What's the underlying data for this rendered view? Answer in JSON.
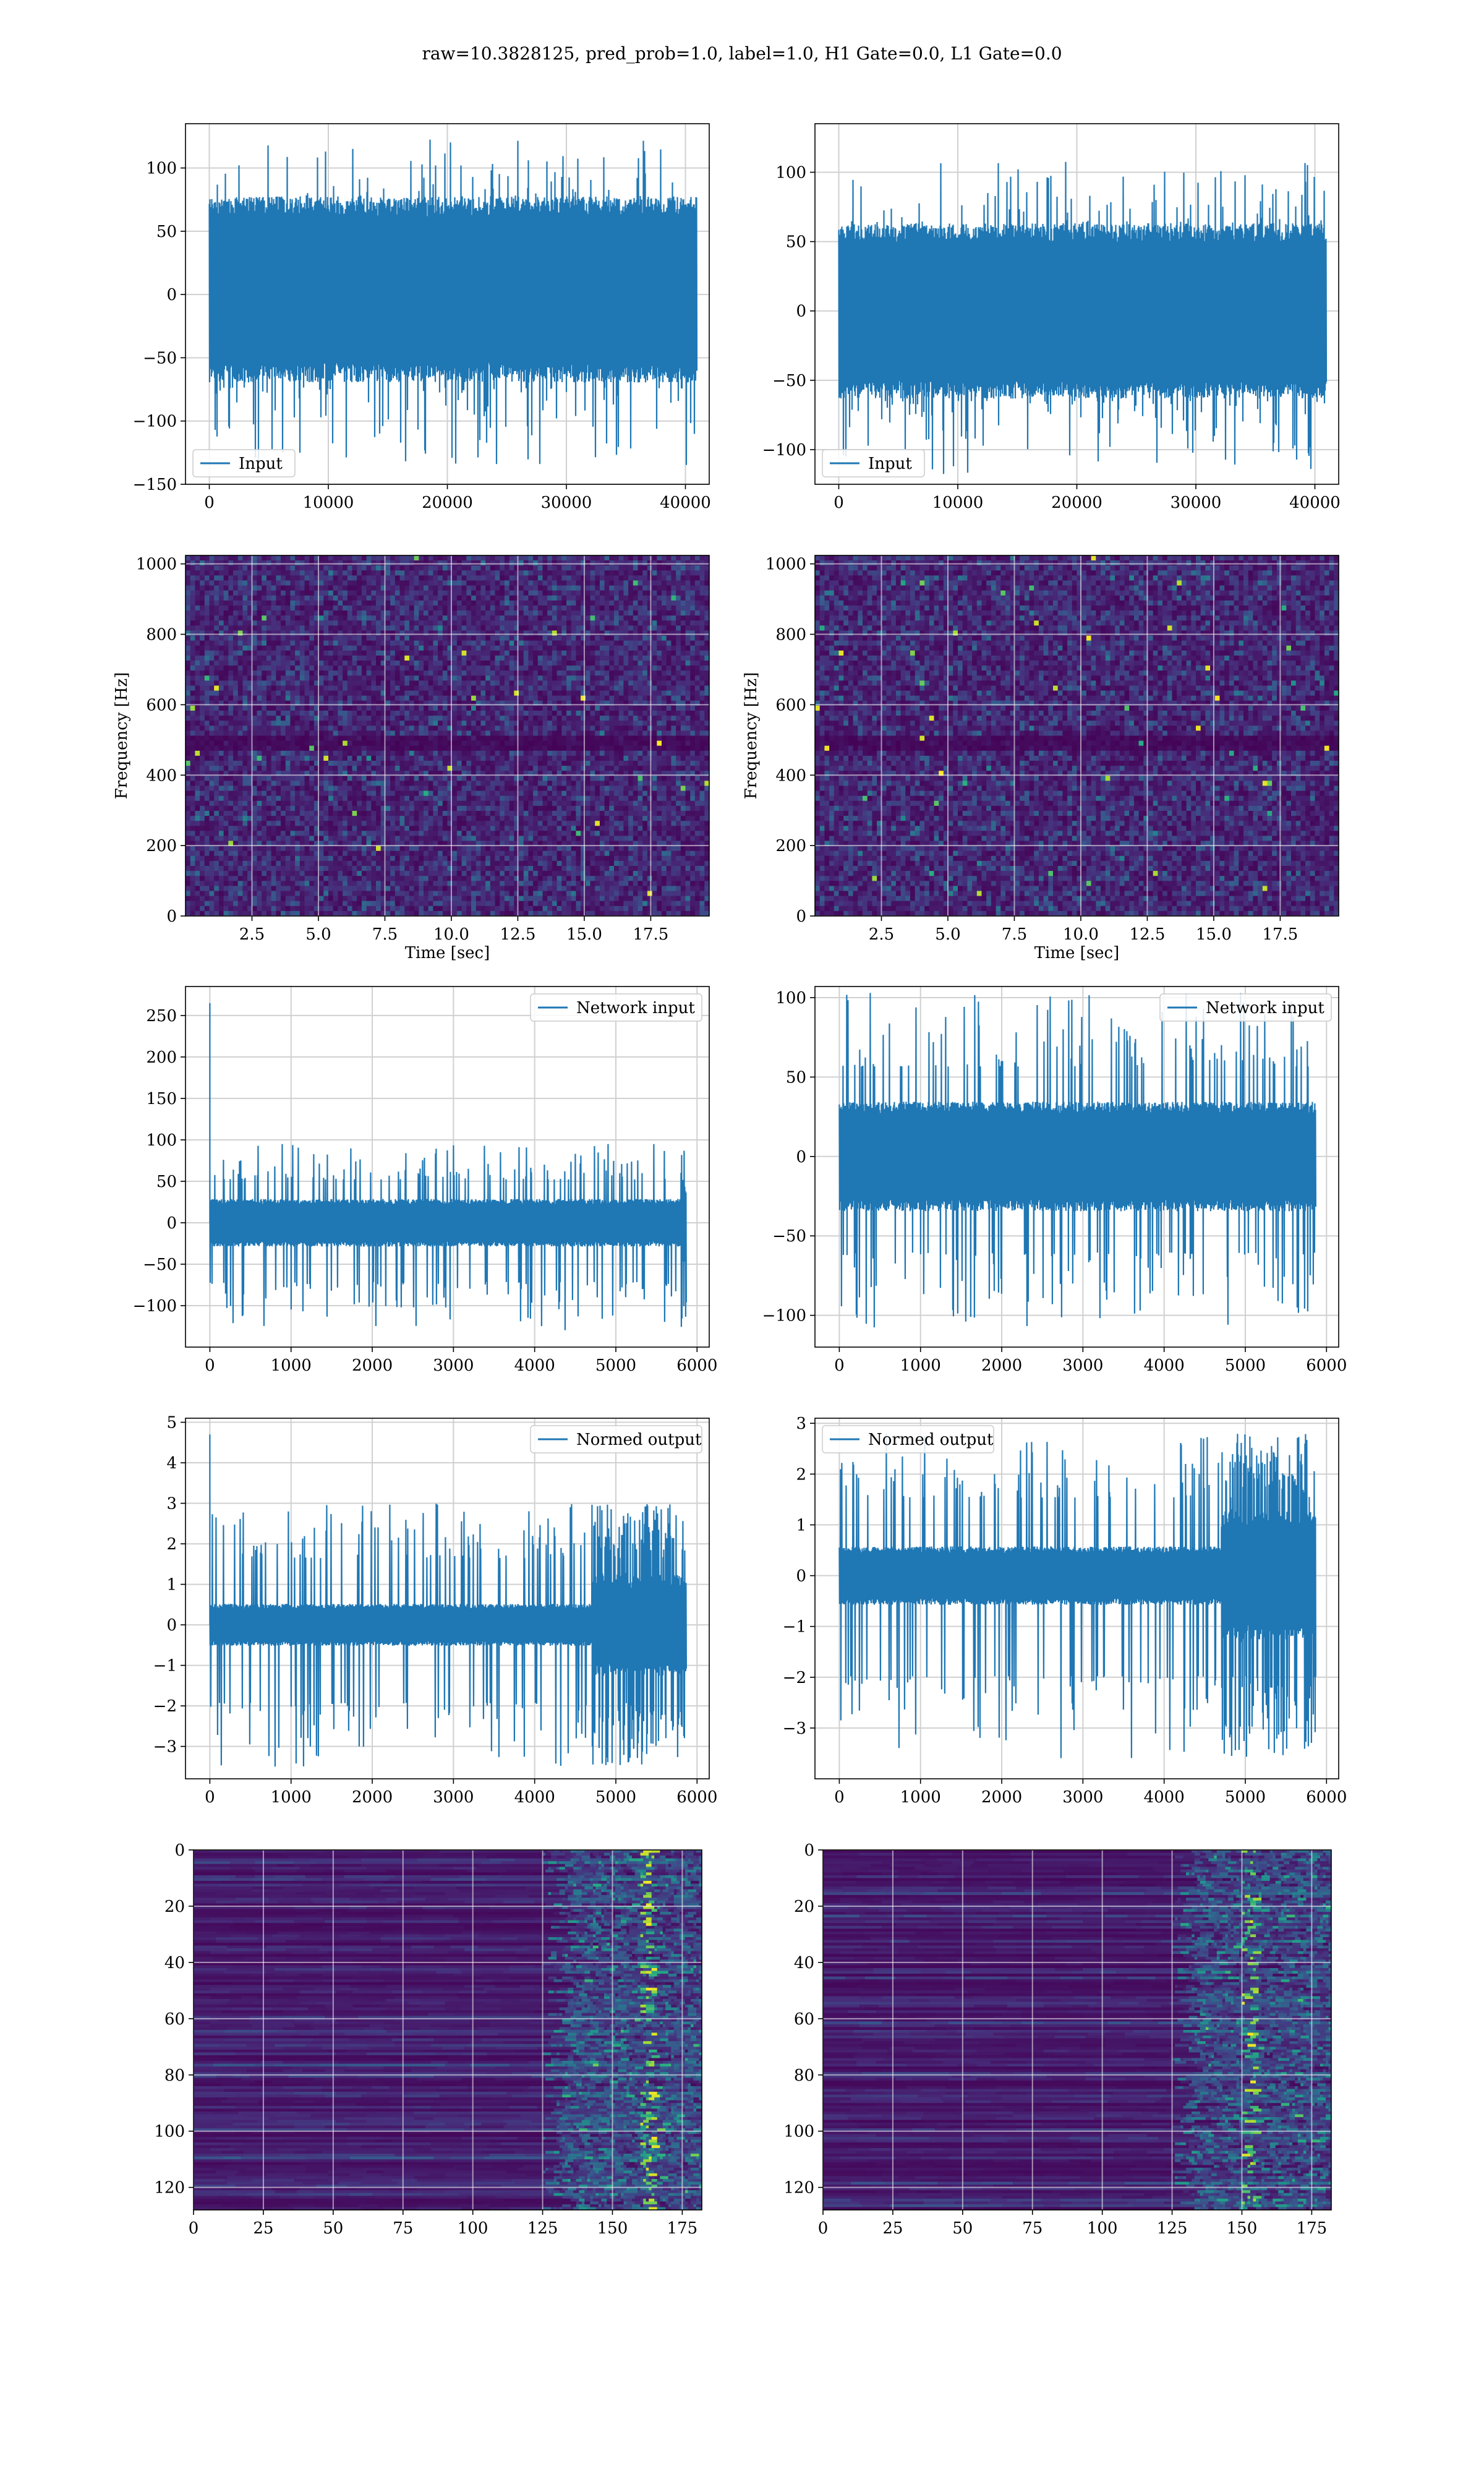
{
  "figure": {
    "suptitle": "raw=10.3828125, pred_prob=1.0, label=1.0, H1 Gate=0.0, L1 Gate=0.0"
  },
  "chart_data": [
    {
      "id": "h1-input",
      "type": "line",
      "legend": "Input",
      "legend_loc": "lower-left",
      "xlim": [
        -2000,
        42000
      ],
      "ylim": [
        -150,
        135
      ],
      "xticks": [
        0,
        10000,
        20000,
        30000,
        40000
      ],
      "xtick_labels": [
        "0",
        "10000",
        "20000",
        "30000",
        "40000"
      ],
      "yticks": [
        -150,
        -100,
        -50,
        0,
        50,
        100
      ],
      "ytick_labels": [
        "−150",
        "−100",
        "−50",
        "0",
        "50",
        "100"
      ],
      "grid": true,
      "color": "#1f77b4",
      "series": {
        "x_start": 0,
        "x_end": 40960,
        "band_lo": -60,
        "band_hi": 68,
        "spike_min": -137,
        "spike_max": 125
      }
    },
    {
      "id": "l1-input",
      "type": "line",
      "legend": "Input",
      "legend_loc": "lower-left",
      "xlim": [
        -2000,
        42000
      ],
      "ylim": [
        -125,
        135
      ],
      "xticks": [
        0,
        10000,
        20000,
        30000,
        40000
      ],
      "xtick_labels": [
        "0",
        "10000",
        "20000",
        "30000",
        "40000"
      ],
      "yticks": [
        -100,
        -50,
        0,
        50,
        100
      ],
      "ytick_labels": [
        "−100",
        "−50",
        "0",
        "50",
        "100"
      ],
      "grid": true,
      "color": "#1f77b4",
      "series": {
        "x_start": 0,
        "x_end": 40960,
        "band_lo": -55,
        "band_hi": 55,
        "spike_min": -118,
        "spike_max": 108
      }
    },
    {
      "id": "h1-spectrogram",
      "type": "heatmap",
      "colormap": "viridis",
      "xlabel": "Time [sec]",
      "ylabel": "Frequency [Hz]",
      "xlim": [
        0,
        19.7
      ],
      "ylim": [
        0,
        1024
      ],
      "xticks": [
        2.5,
        5.0,
        7.5,
        10.0,
        12.5,
        15.0,
        17.5
      ],
      "xtick_labels": [
        "2.5",
        "5.0",
        "7.5",
        "10.0",
        "12.5",
        "15.0",
        "17.5"
      ],
      "yticks": [
        0,
        200,
        400,
        600,
        800,
        1000
      ],
      "ytick_labels": [
        "0",
        "200",
        "400",
        "600",
        "800",
        "1000"
      ],
      "grid": true,
      "dark_band_hz": 500
    },
    {
      "id": "l1-spectrogram",
      "type": "heatmap",
      "colormap": "viridis",
      "xlabel": "Time [sec]",
      "ylabel": "Frequency [Hz]",
      "xlim": [
        0,
        19.7
      ],
      "ylim": [
        0,
        1024
      ],
      "xticks": [
        2.5,
        5.0,
        7.5,
        10.0,
        12.5,
        15.0,
        17.5
      ],
      "xtick_labels": [
        "2.5",
        "5.0",
        "7.5",
        "10.0",
        "12.5",
        "15.0",
        "17.5"
      ],
      "yticks": [
        0,
        200,
        400,
        600,
        800,
        1000
      ],
      "ytick_labels": [
        "0",
        "200",
        "400",
        "600",
        "800",
        "1000"
      ],
      "grid": true,
      "dark_band_hz": 500
    },
    {
      "id": "h1-network-input",
      "type": "line",
      "legend": "Network input",
      "legend_loc": "upper-right",
      "xlim": [
        -300,
        6150
      ],
      "ylim": [
        -150,
        285
      ],
      "xticks": [
        0,
        1000,
        2000,
        3000,
        4000,
        5000,
        6000
      ],
      "xtick_labels": [
        "0",
        "1000",
        "2000",
        "3000",
        "4000",
        "5000",
        "6000"
      ],
      "yticks": [
        -100,
        -50,
        0,
        50,
        100,
        150,
        200,
        250
      ],
      "ytick_labels": [
        "−100",
        "−50",
        "0",
        "50",
        "100",
        "150",
        "200",
        "250"
      ],
      "grid": true,
      "color": "#1f77b4",
      "series": {
        "x_start": 0,
        "x_end": 5860,
        "band_lo": -25,
        "band_hi": 25,
        "spike_min": -130,
        "spike_max": 95,
        "initial_spike": 265,
        "late_onset": 5800
      }
    },
    {
      "id": "l1-network-input",
      "type": "line",
      "legend": "Network input",
      "legend_loc": "upper-right",
      "xlim": [
        -300,
        6150
      ],
      "ylim": [
        -120,
        107
      ],
      "xticks": [
        0,
        1000,
        2000,
        3000,
        4000,
        5000,
        6000
      ],
      "xtick_labels": [
        "0",
        "1000",
        "2000",
        "3000",
        "4000",
        "5000",
        "6000"
      ],
      "yticks": [
        -100,
        -50,
        0,
        50,
        100
      ],
      "ytick_labels": [
        "−100",
        "−50",
        "0",
        "50",
        "100"
      ],
      "grid": true,
      "color": "#1f77b4",
      "series": {
        "x_start": 0,
        "x_end": 5860,
        "band_lo": -30,
        "band_hi": 30,
        "spike_min": -110,
        "spike_max": 103
      }
    },
    {
      "id": "h1-normed-output",
      "type": "line",
      "legend": "Normed output",
      "legend_loc": "upper-right",
      "xlim": [
        -300,
        6150
      ],
      "ylim": [
        -3.8,
        5.1
      ],
      "xticks": [
        0,
        1000,
        2000,
        3000,
        4000,
        5000,
        6000
      ],
      "xtick_labels": [
        "0",
        "1000",
        "2000",
        "3000",
        "4000",
        "5000",
        "6000"
      ],
      "yticks": [
        -3,
        -2,
        -1,
        0,
        1,
        2,
        3,
        4,
        5
      ],
      "ytick_labels": [
        "−3",
        "−2",
        "−1",
        "0",
        "1",
        "2",
        "3",
        "4",
        "5"
      ],
      "grid": true,
      "color": "#1f77b4",
      "series": {
        "x_start": 0,
        "x_end": 5860,
        "band_lo": -0.45,
        "band_hi": 0.45,
        "spike_min": -3.5,
        "spike_max": 3.0,
        "initial_spike": 4.7,
        "late_onset": 4700,
        "late_amp": 1.2
      }
    },
    {
      "id": "l1-normed-output",
      "type": "line",
      "legend": "Normed output",
      "legend_loc": "upper-left",
      "xlim": [
        -300,
        6150
      ],
      "ylim": [
        -4.0,
        3.1
      ],
      "xticks": [
        0,
        1000,
        2000,
        3000,
        4000,
        5000,
        6000
      ],
      "xtick_labels": [
        "0",
        "1000",
        "2000",
        "3000",
        "4000",
        "5000",
        "6000"
      ],
      "yticks": [
        -3,
        -2,
        -1,
        0,
        1,
        2,
        3
      ],
      "ytick_labels": [
        "−3",
        "−2",
        "−1",
        "0",
        "1",
        "2",
        "3"
      ],
      "grid": true,
      "color": "#1f77b4",
      "series": {
        "x_start": 0,
        "x_end": 5860,
        "band_lo": -0.5,
        "band_hi": 0.5,
        "spike_min": -3.6,
        "spike_max": 2.8,
        "late_onset": 4700,
        "late_amp": 1.0
      }
    },
    {
      "id": "h1-embedding",
      "type": "heatmap",
      "colormap": "viridis",
      "xlim": [
        0,
        182
      ],
      "ylim": [
        128,
        0
      ],
      "xticks": [
        0,
        25,
        50,
        75,
        100,
        125,
        150,
        175
      ],
      "xtick_labels": [
        "0",
        "25",
        "50",
        "75",
        "100",
        "125",
        "150",
        "175"
      ],
      "yticks": [
        0,
        20,
        40,
        60,
        80,
        100,
        120
      ],
      "ytick_labels": [
        "0",
        "20",
        "40",
        "60",
        "80",
        "100",
        "120"
      ],
      "grid": true,
      "active_from": 125,
      "hot_col": 162
    },
    {
      "id": "l1-embedding",
      "type": "heatmap",
      "colormap": "viridis",
      "xlim": [
        0,
        182
      ],
      "ylim": [
        128,
        0
      ],
      "xticks": [
        0,
        25,
        50,
        75,
        100,
        125,
        150,
        175
      ],
      "xtick_labels": [
        "0",
        "25",
        "50",
        "75",
        "100",
        "125",
        "150",
        "175"
      ],
      "yticks": [
        0,
        20,
        40,
        60,
        80,
        100,
        120
      ],
      "ytick_labels": [
        "0",
        "20",
        "40",
        "60",
        "80",
        "100",
        "120"
      ],
      "grid": true,
      "active_from": 125,
      "hot_col": 152
    }
  ]
}
